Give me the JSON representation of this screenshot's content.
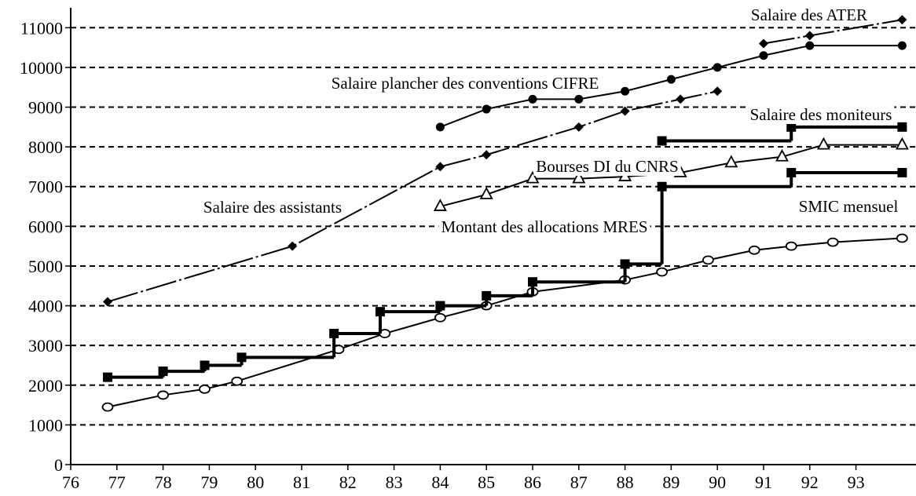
{
  "chart_data": {
    "type": "line",
    "xlim": [
      76,
      94.3
    ],
    "xticks": [
      76,
      77,
      78,
      79,
      80,
      81,
      82,
      83,
      84,
      85,
      86,
      87,
      88,
      89,
      90,
      91,
      92,
      93
    ],
    "ylim": [
      0,
      11500
    ],
    "yticks": [
      0,
      1000,
      2000,
      3000,
      4000,
      5000,
      6000,
      7000,
      8000,
      9000,
      10000,
      11000
    ],
    "grid": true,
    "series": [
      {
        "name": "Salaire des ATER",
        "color": "#000000",
        "marker": "diamond",
        "line": "dashdot",
        "step": false,
        "x": [
          91,
          92,
          94
        ],
        "values": [
          10600,
          10800,
          11200
        ]
      },
      {
        "name": "Salaire plancher des conventions CIFRE",
        "color": "#000000",
        "marker": "dot",
        "line": "solid",
        "step": false,
        "x": [
          84,
          85,
          86,
          87,
          88,
          89,
          90,
          91,
          92,
          94
        ],
        "values": [
          8500,
          8950,
          9200,
          9200,
          9400,
          9700,
          10000,
          10300,
          10550,
          10550
        ]
      },
      {
        "name": "Salaire des moniteurs",
        "color": "#000000",
        "marker": "square",
        "line": "thick",
        "step": true,
        "x": [
          88.8,
          91.6,
          94
        ],
        "values": [
          8150,
          8500,
          8500
        ]
      },
      {
        "name": "Bourses DI du CNRS",
        "color": "#000000",
        "marker": "triangle",
        "line": "solid",
        "step": false,
        "x": [
          84,
          85,
          86,
          87,
          88,
          89.2,
          90.3,
          91.4,
          92.3,
          94
        ],
        "values": [
          6500,
          6800,
          7200,
          7200,
          7250,
          7350,
          7600,
          7750,
          8050,
          8050
        ]
      },
      {
        "name": "Salaire des assistants",
        "color": "#000000",
        "marker": "diamond",
        "line": "dashdot",
        "step": false,
        "x": [
          76.8,
          80.8,
          84,
          85,
          87,
          88,
          89.2,
          90
        ],
        "values": [
          4100,
          5500,
          7500,
          7800,
          8500,
          8900,
          9200,
          9400
        ]
      },
      {
        "name": "SMIC mensuel",
        "color": "#000000",
        "marker": "circle",
        "line": "solid",
        "step": false,
        "x": [
          76.8,
          78,
          78.9,
          79.6,
          81.8,
          82.8,
          84,
          85,
          86,
          88,
          88.8,
          89.8,
          90.8,
          91.6,
          92.5,
          94
        ],
        "values": [
          1450,
          1750,
          1900,
          2100,
          2900,
          3300,
          3700,
          4000,
          4350,
          4650,
          4850,
          5150,
          5400,
          5500,
          5600,
          5700
        ]
      },
      {
        "name": "Montant des allocations MRES",
        "color": "#000000",
        "marker": "square",
        "line": "thick",
        "step": true,
        "x": [
          76.8,
          78,
          78.9,
          79.7,
          81.7,
          82.7,
          84,
          85,
          86,
          88,
          88.8,
          91.6,
          94
        ],
        "values": [
          2200,
          2350,
          2500,
          2700,
          3300,
          3850,
          4000,
          4250,
          4600,
          5050,
          7000,
          7350,
          7350
        ]
      }
    ]
  }
}
